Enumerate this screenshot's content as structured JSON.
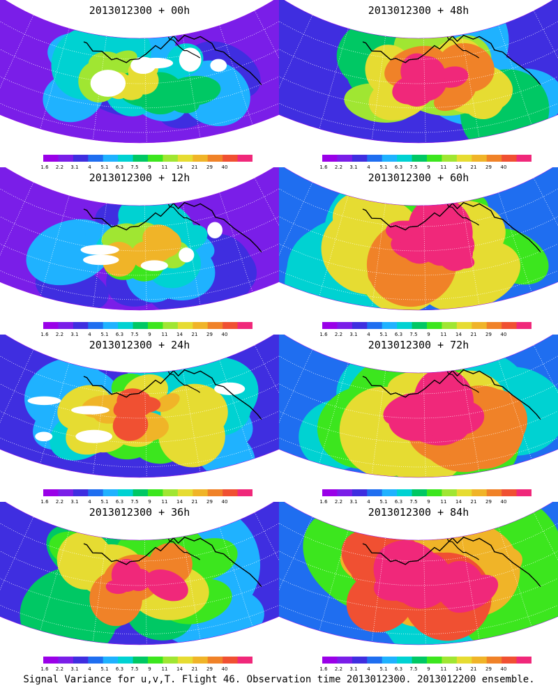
{
  "panels": [
    {
      "title": "2013012300 + 00h",
      "intensity": 0.25
    },
    {
      "title": "2013012300 + 48h",
      "intensity": 0.62
    },
    {
      "title": "2013012300 + 12h",
      "intensity": 0.35
    },
    {
      "title": "2013012300 + 60h",
      "intensity": 0.72
    },
    {
      "title": "2013012300 + 24h",
      "intensity": 0.45
    },
    {
      "title": "2013012300 + 72h",
      "intensity": 0.8
    },
    {
      "title": "2013012300 + 36h",
      "intensity": 0.55
    },
    {
      "title": "2013012300 + 84h",
      "intensity": 0.85
    }
  ],
  "colorbar": {
    "labels": [
      "1.6",
      "2.2",
      "3.1",
      "4",
      "5.1",
      "6.3",
      "7.5",
      "9",
      "11",
      "14",
      "21",
      "29",
      "40"
    ],
    "colors": [
      "#9a00e8",
      "#7a1ee8",
      "#3f2ee0",
      "#1f6ef0",
      "#1fb2ff",
      "#00d2d2",
      "#00c864",
      "#3ce61e",
      "#a0e632",
      "#e6dc32",
      "#f0b428",
      "#f08228",
      "#f05032",
      "#f0287a"
    ]
  },
  "caption": "Signal Variance for u,v,T. Flight 46. Observation time 2013012300. 2013012200 ensemble."
}
